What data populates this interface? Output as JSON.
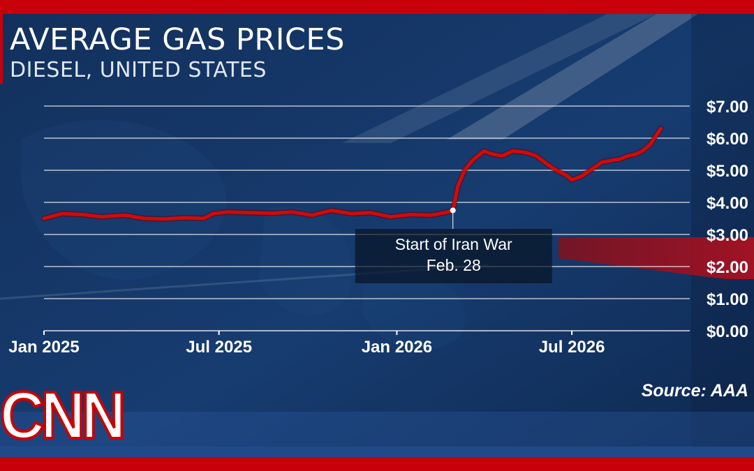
{
  "header": {
    "title": "AVERAGE GAS PRICES",
    "subtitle": "DIESEL, UNITED STATES"
  },
  "source": "Source: AAA",
  "logo": "CNN",
  "colors": {
    "line": "#d10a0a",
    "frame": "#c8000a",
    "background": "#0f2a52"
  },
  "chart_data": {
    "type": "line",
    "title": "AVERAGE GAS PRICES",
    "subtitle": "DIESEL, UNITED STATES",
    "xlabel": "",
    "ylabel": "",
    "x_ticks": [
      "Jan 2025",
      "Jul 2025",
      "Jan 2026",
      "Jul 2026"
    ],
    "y_ticks": [
      "$0.00",
      "$1.00",
      "$2.00",
      "$3.00",
      "$4.00",
      "$5.00",
      "$6.00",
      "$7.00"
    ],
    "ylim": [
      0,
      7
    ],
    "xlim": [
      "2025-01-01",
      "2026-10-31"
    ],
    "y_axis_position": "right",
    "grid": true,
    "series": [
      {
        "name": "",
        "x": [
          "2025-01-01",
          "2025-01-20",
          "2025-02-10",
          "2025-03-01",
          "2025-03-25",
          "2025-04-15",
          "2025-05-05",
          "2025-05-25",
          "2025-06-15",
          "2025-06-25",
          "2025-07-10",
          "2025-08-01",
          "2025-08-25",
          "2025-09-15",
          "2025-10-05",
          "2025-10-25",
          "2025-11-15",
          "2025-12-05",
          "2025-12-25",
          "2026-01-15",
          "2026-02-05",
          "2026-02-20",
          "2026-02-28",
          "2026-03-05",
          "2026-03-12",
          "2026-03-20",
          "2026-04-01",
          "2026-04-10",
          "2026-04-20",
          "2026-05-01",
          "2026-05-15",
          "2026-05-25",
          "2026-06-05",
          "2026-06-15",
          "2026-06-25",
          "2026-07-01",
          "2026-07-10",
          "2026-07-20",
          "2026-08-01",
          "2026-08-10",
          "2026-08-20",
          "2026-08-28",
          "2026-09-05",
          "2026-09-12",
          "2026-09-20",
          "2026-10-01"
        ],
        "values": [
          3.5,
          3.65,
          3.62,
          3.55,
          3.6,
          3.5,
          3.48,
          3.52,
          3.5,
          3.65,
          3.7,
          3.68,
          3.66,
          3.7,
          3.6,
          3.75,
          3.65,
          3.68,
          3.55,
          3.62,
          3.6,
          3.68,
          3.75,
          4.5,
          5.0,
          5.3,
          5.6,
          5.5,
          5.45,
          5.6,
          5.55,
          5.45,
          5.2,
          5.0,
          4.85,
          4.7,
          4.8,
          5.0,
          5.25,
          5.3,
          5.35,
          5.45,
          5.5,
          5.6,
          5.8,
          6.3
        ]
      }
    ],
    "annotations": [
      {
        "x": "2026-02-28",
        "y": 3.75,
        "lines": [
          "Start of Iran War",
          "Feb. 28"
        ]
      }
    ]
  }
}
